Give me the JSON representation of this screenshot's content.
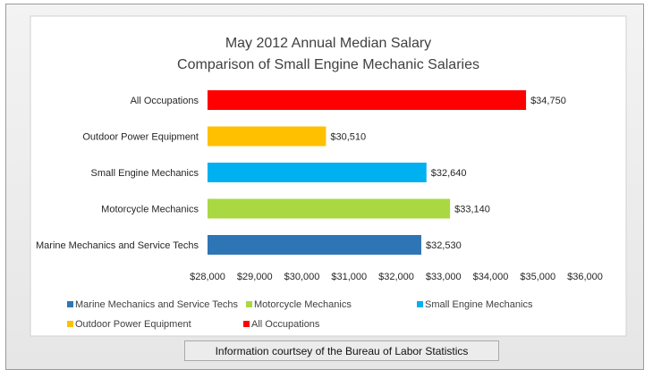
{
  "footer": {
    "note": "Information courtsey of the Bureau of Labor Statistics"
  },
  "chart_data": {
    "type": "bar",
    "orientation": "horizontal",
    "title": [
      "May 2012 Annual Median Salary",
      "Comparison of Small Engine Mechanic Salaries"
    ],
    "xlabel": "",
    "ylabel": "",
    "xlim": [
      28000,
      36000
    ],
    "xticks": [
      28000,
      29000,
      30000,
      31000,
      32000,
      33000,
      34000,
      35000,
      36000
    ],
    "xtick_labels": [
      "$28,000",
      "$29,000",
      "$30,000",
      "$31,000",
      "$32,000",
      "$33,000",
      "$34,000",
      "$35,000",
      "$36,000"
    ],
    "grid": false,
    "legend_position": "bottom",
    "categories": [
      "All Occupations",
      "Outdoor Power Equipment",
      "Small Engine Mechanics",
      "Motorcycle Mechanics",
      "Marine Mechanics and Service Techs"
    ],
    "values": [
      34750,
      30510,
      32640,
      33140,
      32530
    ],
    "value_labels": [
      "$34,750",
      "$30,510",
      "$32,640",
      "$33,140",
      "$32,530"
    ],
    "colors": [
      "#ff0000",
      "#ffc000",
      "#00b0f0",
      "#a9d843",
      "#2e75b6"
    ],
    "legend": [
      {
        "label": "Marine Mechanics and Service Techs",
        "color": "#2e75b6"
      },
      {
        "label": "Motorcycle Mechanics",
        "color": "#a9d843"
      },
      {
        "label": "Small Engine Mechanics",
        "color": "#00b0f0"
      },
      {
        "label": "Outdoor Power Equipment",
        "color": "#ffc000"
      },
      {
        "label": "All Occupations",
        "color": "#ff0000"
      }
    ]
  }
}
